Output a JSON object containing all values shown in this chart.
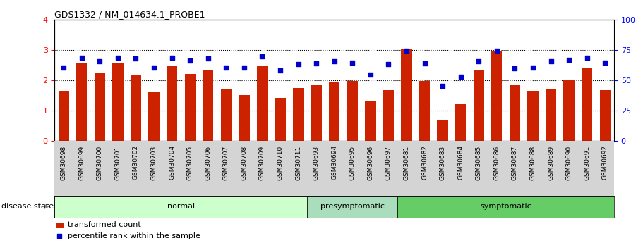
{
  "title": "GDS1332 / NM_014634.1_PROBE1",
  "categories": [
    "GSM30698",
    "GSM30699",
    "GSM30700",
    "GSM30701",
    "GSM30702",
    "GSM30703",
    "GSM30704",
    "GSM30705",
    "GSM30706",
    "GSM30707",
    "GSM30708",
    "GSM30709",
    "GSM30710",
    "GSM30711",
    "GSM30693",
    "GSM30694",
    "GSM30695",
    "GSM30696",
    "GSM30697",
    "GSM30681",
    "GSM30682",
    "GSM30683",
    "GSM30684",
    "GSM30685",
    "GSM30686",
    "GSM30687",
    "GSM30688",
    "GSM30689",
    "GSM30690",
    "GSM30691",
    "GSM30692"
  ],
  "bar_values": [
    1.65,
    2.58,
    2.22,
    2.55,
    2.18,
    1.62,
    2.48,
    2.2,
    2.32,
    1.72,
    1.52,
    2.45,
    1.42,
    1.75,
    1.85,
    1.95,
    1.98,
    1.3,
    1.68,
    3.05,
    1.98,
    0.68,
    1.22,
    2.35,
    2.95,
    1.85,
    1.65,
    1.72,
    2.02,
    2.4,
    1.68
  ],
  "dot_values": [
    2.42,
    2.75,
    2.62,
    2.75,
    2.72,
    2.42,
    2.75,
    2.65,
    2.72,
    2.42,
    2.42,
    2.78,
    2.32,
    2.52,
    2.55,
    2.62,
    2.58,
    2.18,
    2.52,
    2.98,
    2.55,
    1.82,
    2.12,
    2.62,
    2.98,
    2.38,
    2.42,
    2.62,
    2.68,
    2.75,
    2.58
  ],
  "groups": [
    {
      "label": "normal",
      "start": 0,
      "end": 14,
      "color": "#ccffcc"
    },
    {
      "label": "presymptomatic",
      "start": 14,
      "end": 19,
      "color": "#aaddbb"
    },
    {
      "label": "symptomatic",
      "start": 19,
      "end": 31,
      "color": "#66cc66"
    }
  ],
  "ylim_left": [
    0,
    4
  ],
  "ylim_right": [
    0,
    100
  ],
  "yticks_left": [
    0,
    1,
    2,
    3,
    4
  ],
  "yticks_right": [
    0,
    25,
    50,
    75,
    100
  ],
  "bar_color": "#cc2200",
  "dot_color": "#0000cc",
  "dotted_lines": [
    1.0,
    2.0,
    3.0
  ],
  "figsize": [
    9.11,
    3.45
  ],
  "dpi": 100
}
